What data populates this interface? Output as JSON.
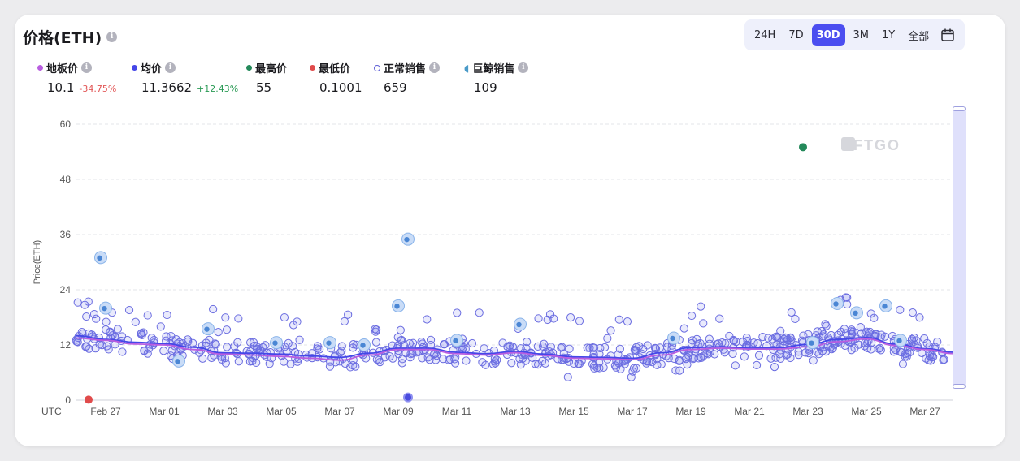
{
  "header": {
    "title": "价格(ETH)"
  },
  "ranges": [
    "24H",
    "7D",
    "30D",
    "3M",
    "1Y",
    "全部"
  ],
  "active_range": "30D",
  "stats": {
    "floor": {
      "label": "地板价",
      "value": "10.1",
      "change": "-34.75%",
      "color": "#b95ee0",
      "change_color": "#e25555"
    },
    "avg": {
      "label": "均价",
      "value": "11.3662",
      "change": "+12.43%",
      "color": "#4547e8",
      "change_color": "#2a9a55"
    },
    "max": {
      "label": "最高价",
      "value": "55",
      "color": "#24895a"
    },
    "min": {
      "label": "最低价",
      "value": "0.1001",
      "color": "#e04b4b"
    },
    "normal": {
      "label": "正常销售",
      "value": "659"
    },
    "whale": {
      "label": "巨鲸销售",
      "value": "109"
    }
  },
  "watermark": "NFTGO",
  "chart_data": {
    "type": "scatter",
    "ylabel": "Price(ETH)",
    "ylim": [
      0,
      60
    ],
    "yticks": [
      0,
      12,
      24,
      36,
      48,
      60
    ],
    "xaxis_prefix": "UTC",
    "xticks": [
      "Feb 27",
      "Mar 01",
      "Mar 03",
      "Mar 05",
      "Mar 07",
      "Mar 09",
      "Mar 11",
      "Mar 13",
      "Mar 15",
      "Mar 17",
      "Mar 19",
      "Mar 21",
      "Mar 23",
      "Mar 25",
      "Mar 27"
    ],
    "grid": true,
    "x_start": "2022-02-26",
    "highlights": [
      {
        "name": "最高价",
        "date": "2022-03-22 20:00",
        "price": 55
      },
      {
        "name": "最低价",
        "date": "2022-02-26 10:00",
        "price": 0.1001
      }
    ],
    "series": [
      {
        "name": "均价",
        "points": [
          [
            "Feb 26",
            14
          ],
          [
            "Feb 27",
            13.2
          ],
          [
            "Feb 28",
            12.6
          ],
          [
            "Mar 01",
            12.3
          ],
          [
            "Mar 02",
            11.5
          ],
          [
            "Mar 03",
            10.3
          ],
          [
            "Mar 04",
            10.2
          ],
          [
            "Mar 05",
            10
          ],
          [
            "Mar 06",
            9.6
          ],
          [
            "Mar 07",
            9.3
          ],
          [
            "Mar 08",
            10.2
          ],
          [
            "Mar 09",
            11.3
          ],
          [
            "Mar 10",
            11.3
          ],
          [
            "Mar 11",
            10.4
          ],
          [
            "Mar 12",
            10.1
          ],
          [
            "Mar 13",
            10.6
          ],
          [
            "Mar 14",
            10
          ],
          [
            "Mar 15",
            9.4
          ],
          [
            "Mar 16",
            9.3
          ],
          [
            "Mar 17",
            9.1
          ],
          [
            "Mar 18",
            10.3
          ],
          [
            "Mar 19",
            11.4
          ],
          [
            "Mar 20",
            11.6
          ],
          [
            "Mar 21",
            11.3
          ],
          [
            "Mar 22",
            11.4
          ],
          [
            "Mar 23",
            12.1
          ],
          [
            "Mar 24",
            13.2
          ],
          [
            "Mar 25",
            13.6
          ],
          [
            "Mar 26",
            12.2
          ],
          [
            "Mar 27",
            11.2
          ],
          [
            "Mar 28",
            10.4
          ]
        ]
      },
      {
        "name": "地板价",
        "points": [
          [
            "Feb 26",
            13.5
          ],
          [
            "Feb 27",
            13
          ],
          [
            "Feb 28",
            12.2
          ],
          [
            "Mar 01",
            12
          ],
          [
            "Mar 02",
            11
          ],
          [
            "Mar 03",
            10
          ],
          [
            "Mar 04",
            9.8
          ],
          [
            "Mar 05",
            9.5
          ],
          [
            "Mar 06",
            9.1
          ],
          [
            "Mar 07",
            8.7
          ],
          [
            "Mar 08",
            9.8
          ],
          [
            "Mar 09",
            11
          ],
          [
            "Mar 10",
            11
          ],
          [
            "Mar 11",
            10.1
          ],
          [
            "Mar 12",
            9.8
          ],
          [
            "Mar 13",
            10.3
          ],
          [
            "Mar 14",
            9.7
          ],
          [
            "Mar 15",
            9.1
          ],
          [
            "Mar 16",
            9
          ],
          [
            "Mar 17",
            8.8
          ],
          [
            "Mar 18",
            9.8
          ],
          [
            "Mar 19",
            11
          ],
          [
            "Mar 20",
            11.3
          ],
          [
            "Mar 21",
            11.1
          ],
          [
            "Mar 22",
            11.1
          ],
          [
            "Mar 23",
            11.6
          ],
          [
            "Mar 24",
            12.7
          ],
          [
            "Mar 25",
            13.3
          ],
          [
            "Mar 26",
            11.9
          ],
          [
            "Mar 27",
            11
          ],
          [
            "Mar 28",
            10.1
          ]
        ]
      },
      {
        "name": "巨鲸销售",
        "points": [
          [
            "2022-02-26 20:00",
            31
          ],
          [
            "2022-02-27 00:00",
            20
          ],
          [
            "2022-03-01 12:00",
            8.5
          ],
          [
            "2022-03-02 12:00",
            15.5
          ],
          [
            "2022-03-04 20:00",
            12.5
          ],
          [
            "2022-03-06 16:00",
            12.5
          ],
          [
            "2022-03-07 20:00",
            12
          ],
          [
            "2022-03-09 00:00",
            20.5
          ],
          [
            "2022-03-09 08:00",
            35
          ],
          [
            "2022-03-11 00:00",
            13
          ],
          [
            "2022-03-13 04:00",
            16.5
          ],
          [
            "2022-03-18 10:00",
            13.5
          ],
          [
            "2022-03-23 04:00",
            12.5
          ],
          [
            "2022-03-24 00:00",
            21
          ],
          [
            "2022-03-24 16:00",
            19
          ],
          [
            "2022-03-25 16:00",
            20.5
          ],
          [
            "2022-03-26 04:00",
            13
          ]
        ]
      }
    ]
  }
}
